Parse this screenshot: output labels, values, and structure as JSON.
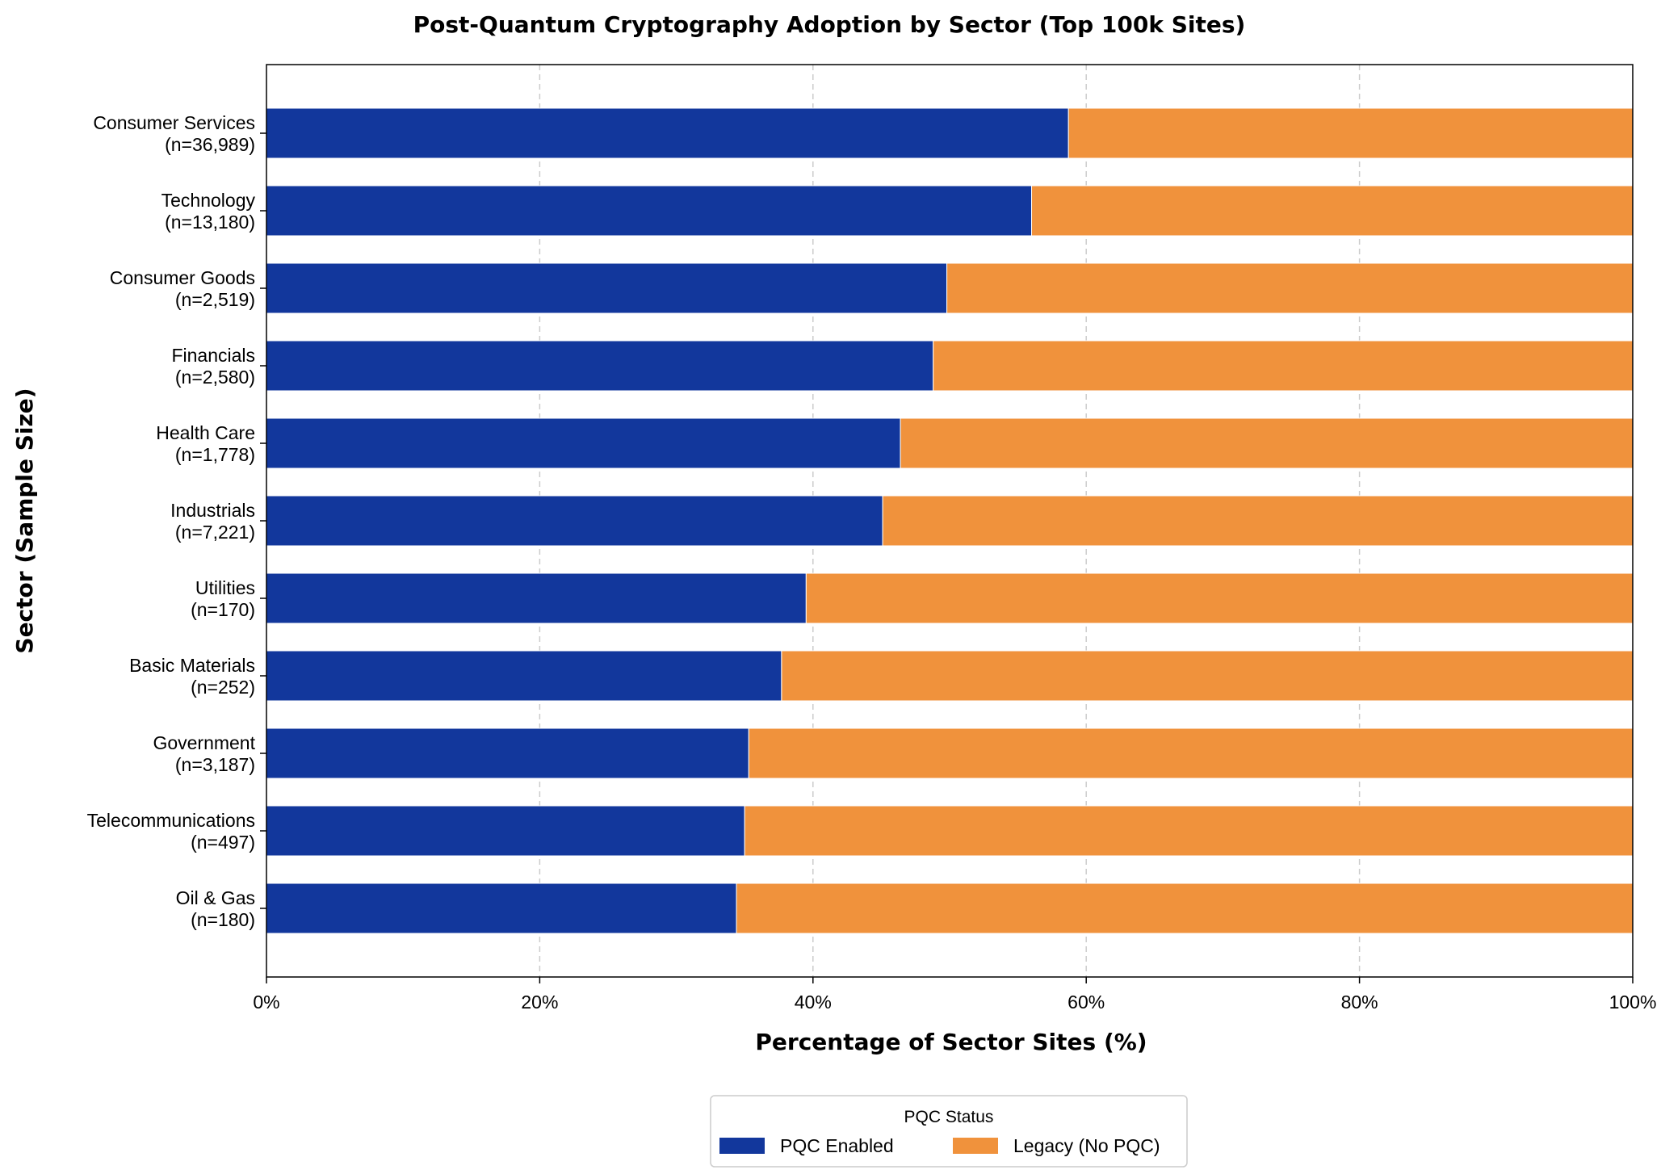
{
  "chart_data": {
    "type": "bar",
    "orientation": "horizontal",
    "stacked": true,
    "title": "Post-Quantum Cryptography Adoption by Sector (Top 100k Sites)",
    "xlabel": "Percentage of Sector Sites (%)",
    "ylabel": "Sector (Sample Size)",
    "xlim": [
      0,
      100
    ],
    "x_ticks": [
      "0%",
      "20%",
      "40%",
      "60%",
      "80%",
      "100%"
    ],
    "grid": "vertical dashed",
    "categories": [
      {
        "name": "Consumer Services",
        "n": "(n=36,989)"
      },
      {
        "name": "Technology",
        "n": "(n=13,180)"
      },
      {
        "name": "Consumer Goods",
        "n": "(n=2,519)"
      },
      {
        "name": "Financials",
        "n": "(n=2,580)"
      },
      {
        "name": "Health Care",
        "n": "(n=1,778)"
      },
      {
        "name": "Industrials",
        "n": "(n=7,221)"
      },
      {
        "name": "Utilities",
        "n": "(n=170)"
      },
      {
        "name": "Basic Materials",
        "n": "(n=252)"
      },
      {
        "name": "Government",
        "n": "(n=3,187)"
      },
      {
        "name": "Telecommunications",
        "n": "(n=497)"
      },
      {
        "name": "Oil & Gas",
        "n": "(n=180)"
      }
    ],
    "series": [
      {
        "name": "PQC Enabled",
        "color": "#12379c",
        "values": [
          58.7,
          56.0,
          49.8,
          48.8,
          46.4,
          45.1,
          39.5,
          37.7,
          35.3,
          35.0,
          34.4
        ]
      },
      {
        "name": "Legacy (No PQC)",
        "color": "#f0923c",
        "values": [
          41.3,
          44.0,
          50.2,
          51.2,
          53.6,
          54.9,
          60.5,
          62.3,
          64.7,
          65.0,
          65.6
        ]
      }
    ],
    "legend": {
      "title": "PQC Status",
      "placement": "bottom-center"
    }
  }
}
